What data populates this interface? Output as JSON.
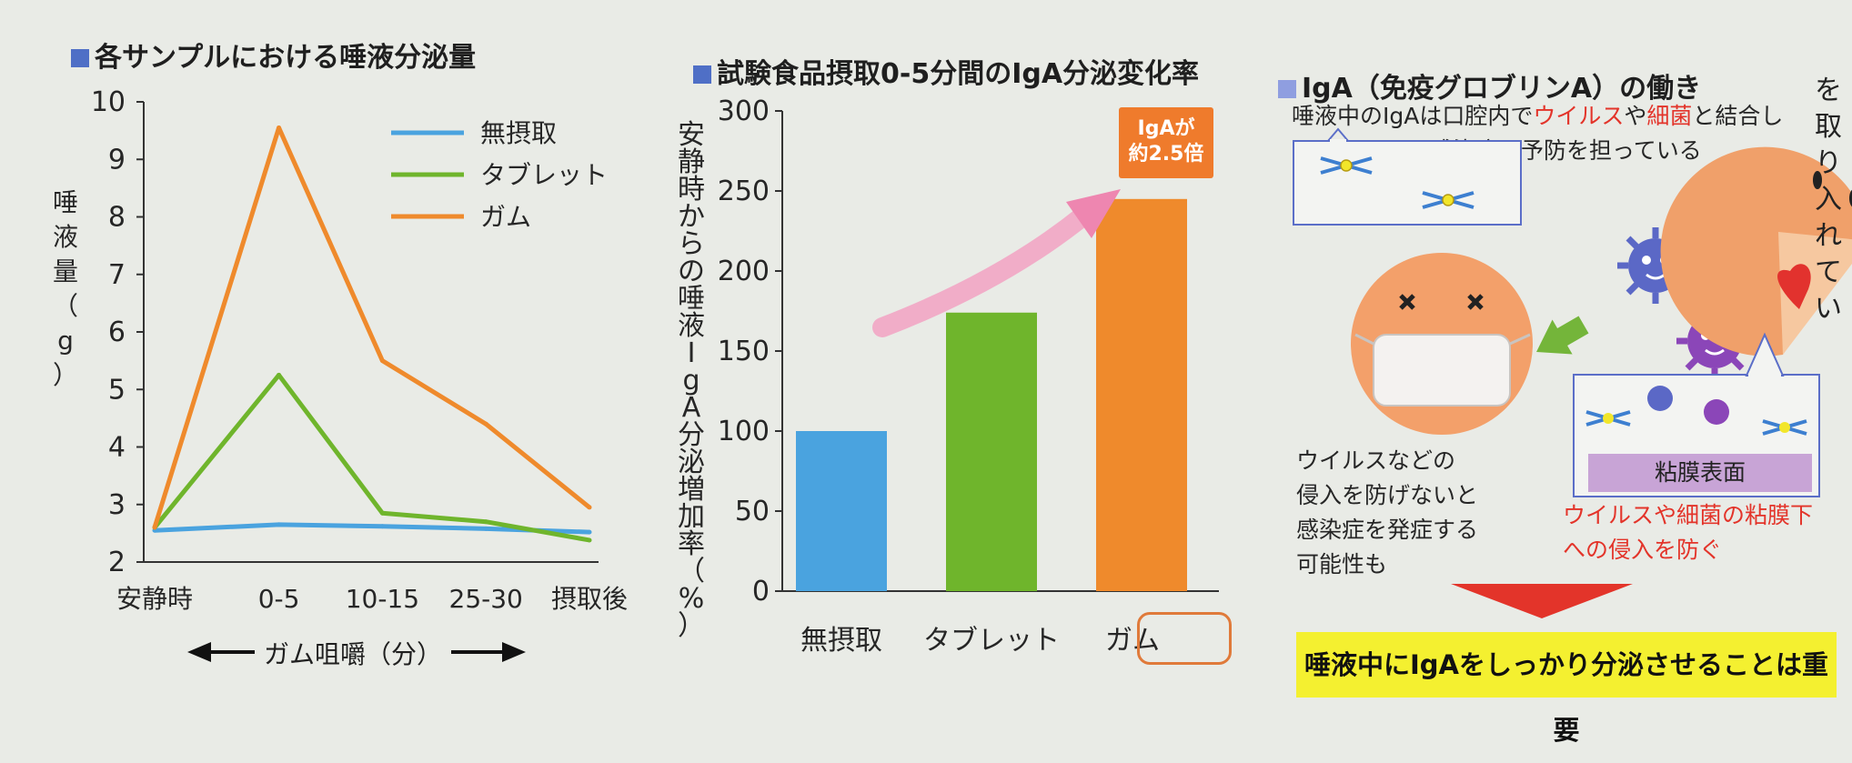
{
  "panels": {
    "p1_title": "各サンプルにおける唾液分泌量",
    "p2_title": "試験食品摂取0-5分間のIgA分泌変化率",
    "p3_title": "IgA（免疫グロブリンA）の働き"
  },
  "chart_data": [
    {
      "type": "line",
      "title": "各サンプルにおける唾液分泌量",
      "xlabel": "ガム咀嚼（分）",
      "ylabel": "唾液量（g）",
      "categories": [
        "安静時",
        "0-5",
        "10-15",
        "25-30",
        "摂取後"
      ],
      "x": [
        0,
        1,
        2,
        3,
        4
      ],
      "x_ticks": [
        0,
        1.2,
        2.2,
        3.2,
        4.2
      ],
      "ylim": [
        2,
        10
      ],
      "yticks": [
        2,
        3,
        4,
        5,
        6,
        7,
        8,
        9,
        10
      ],
      "series": [
        {
          "name": "無摂取",
          "color": "#4aa3df",
          "x": [
            0,
            1.2,
            2.2,
            3.2,
            4.2
          ],
          "values": [
            2.55,
            2.65,
            2.62,
            2.58,
            2.52
          ]
        },
        {
          "name": "タブレット",
          "color": "#6fb52c",
          "x": [
            0,
            1.2,
            2.2,
            3.2,
            4.2
          ],
          "values": [
            2.6,
            5.25,
            2.85,
            2.7,
            2.38
          ]
        },
        {
          "name": "ガム",
          "color": "#ef8a2c",
          "x": [
            0,
            1.2,
            2.2,
            3.2,
            4.2
          ],
          "values": [
            2.6,
            9.55,
            5.5,
            4.4,
            2.95
          ]
        }
      ],
      "legend": "top-right"
    },
    {
      "type": "bar",
      "title": "試験食品摂取0-5分間のIgA分泌変化率",
      "ylabel": "安静時からの唾液IgA分泌増加率（%）",
      "categories": [
        "無摂取",
        "タブレット",
        "ガム"
      ],
      "values": [
        100,
        174,
        245
      ],
      "colors": [
        "#4aa3df",
        "#6fb52c",
        "#ef8a2c"
      ],
      "ylim": [
        0,
        300
      ],
      "yticks": [
        0,
        50,
        100,
        150,
        200,
        250,
        300
      ],
      "annotation": "IgAが約2.5倍",
      "annotation_lines": [
        "IgAが",
        "約2.5倍"
      ]
    }
  ],
  "arrow_label": "ガム咀嚼（分）",
  "diagram": {
    "caption_line1_a": "唾液中のIgAは口腔内で",
    "caption_line1_virus": "ウイルス",
    "caption_line1_ya": "や",
    "caption_line1_bacteria": "細菌",
    "caption_line1_b": "と結合し",
    "caption_line2": "感染症の予防を担っている",
    "left_note_1": "ウイルスなどの",
    "left_note_2": "侵入を防げないと",
    "left_note_3": "感染症を発症する",
    "left_note_4": "可能性も",
    "mucosa_label": "粘膜表面",
    "right_note_1": "ウイルスや細菌の粘膜下",
    "right_note_2": "への侵入を防ぐ",
    "conclusion": "唾液中にIgAをしっかり分泌させることは重要"
  },
  "side_text": "を取り入れてい",
  "colors": {
    "blue": "#4aa3df",
    "green": "#6fb52c",
    "orange": "#ef8a2c",
    "red": "#e3342a",
    "yellow": "#f4f030"
  }
}
